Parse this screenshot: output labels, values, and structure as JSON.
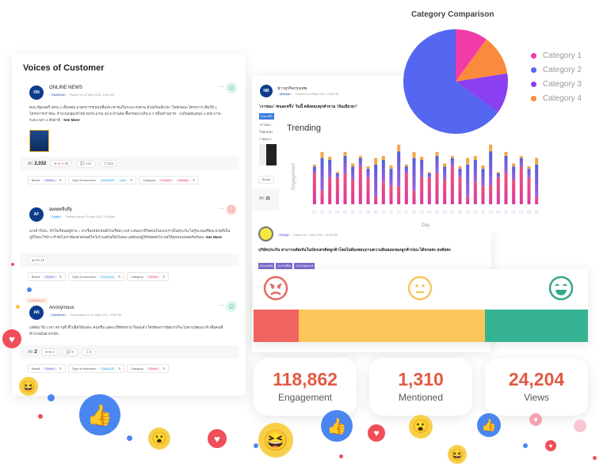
{
  "voc": {
    "title": "Voices of Customer",
    "posts": [
      {
        "avatar": "ON",
        "name": "ONLINE NEWS",
        "source": "Facebook",
        "meta": "Posted on 31 May 2021, 6:00 AM",
        "text": "คณะรัฐมนตรี (ครม.) เห็นชอบ มาตรการช่วยเหลือประชาชนในระยะเร่งด่วน ด้วยเงินเยียวยา ในลักษณะโครงการ เติมให้ 1 โครงการเราชนะ จำนวนกลุ่มเป้าหมายประมาณ 32.9 ล้านคน ซื้อกรอบวงเงิน 6.7 หมื่นล้านบาท - วงเงินสนับสนุน 1,000 บาท - ระยะเวลา 2 สัปดาห์ -",
        "see_more": "See More",
        "all_label": "All:",
        "all": "2,032",
        "reactions": "1.2k",
        "comments": "121",
        "shares": "633",
        "tags": {
          "brand_label": "Brand:",
          "brand": [
            "Others"
          ],
          "type_label": "Type of insurance:",
          "type": [
            "Covid-19",
            "Life"
          ],
          "cat_label": "Category:",
          "cat": [
            "Product",
            "Activity"
          ]
        }
      },
      {
        "avatar": "AF",
        "name": "awwwfluffy",
        "source": "Twitter",
        "meta": "Tweeted since 23 May 2021, 6:38 pm",
        "text": "แกเข้าใจป่ะ: ทำใจเรียนอยู่บ้าน = หาเรื่องหนักหนทั่งไปเรื่อยๆ เพราะมันเอาชีวิตคนในพวกเราเป็นประกัน ไม่รู้จะจนหรือจะป่วยที่เป็นภูมิใจอะไรบ้าง ทำยังไงเราต้องสวดมนต์ไหว้เจ้าแต่มันก็ยังไม่พอ แต่ต้องอยู่ให้รอดต่อไป ขอให้ทุกคนปลอดภัยกันนะ",
        "see_more": "See More",
        "retweets": "82.1k",
        "tags": {
          "brand_label": "Brand:",
          "brand": [
            "Others"
          ],
          "type_label": "Type of insurance:",
          "type": [
            "Covid-19"
          ],
          "cat_label": "Category:",
          "cat": [
            "Others"
          ]
        }
      },
      {
        "badge": "COMMENT",
        "avatar": "AN",
        "name": "Anonymous",
        "source": "Facebook",
        "meta": "Commented on 31 May 2021, 3:54 PM",
        "text": "แต่ต้อง รีบ เวลา สถานที่ ที่ไปฉีดให้แต่ละ คนหรือ แต่ละบริษัททราบ ก็พอแล้ว ใครต้องการฉีดเขาก็จะไปตามนัดเอง ทำเพื่อคนที่ทำงานมันยากกนัก..",
        "all_label": "All:",
        "all": "2",
        "reactions": "2",
        "comments": "0",
        "shares": "0",
        "tags": {
          "brand_label": "Brand:",
          "brand": [
            "Others"
          ],
          "type_label": "Type of insurance:",
          "type": [
            "Covid-19"
          ],
          "cat_label": "Category:",
          "cat": [
            "Others"
          ]
        }
      }
    ]
  },
  "right": {
    "post1": {
      "avatar": "NB",
      "name": "ข่าวธุรกิจกรุงเทพ",
      "source": "Website",
      "meta": "Posted on 6 May 2021, 6:36 PM",
      "title": "'เราชนะ'-'คนละครึ่ง' วันนี้ คลังตอบทุกคำถาม 'เงินเยียวยา'",
      "tag": "คนละครึ่ง",
      "snip": [
        "'เราชนะ'-'",
        "ไขทุกคลัง",
        "7 พฤษภา"
      ],
      "brand_label": "Brand",
      "all_label": "All:",
      "all": "21"
    },
    "post2": {
      "source": "Pantip",
      "meta": "Posted on 7 May 2021, 12:00 AM",
      "title": "บริษัทประกัน สามารถตัดเงินในบัตรเครดิตลูกค้าโดยไม่ต้องสอบถามความยินยอมของลูกค้าก่อน ได้หรอค่ะ สงสัยค่ะ",
      "tags": [
        "บัตรเครดิต",
        "ประกันชีวิต",
        "ประกันสุขภาพ"
      ]
    }
  },
  "sentiment": {
    "negative": 13.5,
    "neutral": 55.7,
    "positive": 30.8,
    "colors": {
      "negative": "#ef6461",
      "neutral": "#fcc65d",
      "positive": "#36b393"
    }
  },
  "stats": [
    {
      "value": "118,862",
      "label": "Engagement"
    },
    {
      "value": "1,310",
      "label": "Mentioned"
    },
    {
      "value": "24,204",
      "label": "Views"
    }
  ],
  "chart_data": [
    {
      "type": "bar",
      "title": "Trending",
      "xlabel": "Day",
      "ylabel": "Engagement",
      "stacked": true,
      "categories": [
        "01",
        "02",
        "03",
        "04",
        "05",
        "06",
        "07",
        "08",
        "09",
        "10",
        "11",
        "12",
        "01",
        "02",
        "03",
        "04",
        "05",
        "06",
        "07",
        "08",
        "09",
        "10",
        "11",
        "12",
        "04",
        "05",
        "06",
        "07",
        "08",
        "09"
      ],
      "series": [
        {
          "name": "pink",
          "color": "#e8437f",
          "values": [
            115,
            50,
            98,
            98,
            115,
            90,
            140,
            98,
            27,
            83,
            67,
            67,
            115,
            50,
            98,
            98,
            115,
            90,
            140,
            98,
            27,
            83,
            67,
            67,
            98,
            115,
            90,
            140,
            98,
            27
          ]
        },
        {
          "name": "blue",
          "color": "#5664d6",
          "values": [
            25,
            122,
            67,
            17,
            65,
            50,
            32,
            34,
            121,
            82,
            65,
            130,
            25,
            122,
            67,
            17,
            65,
            50,
            32,
            34,
            121,
            82,
            65,
            130,
            17,
            65,
            50,
            32,
            34,
            121
          ]
        },
        {
          "name": "orange",
          "color": "#f4a64a",
          "values": [
            8,
            23,
            12,
            5,
            15,
            12,
            8,
            10,
            25,
            15,
            13,
            25,
            8,
            23,
            12,
            5,
            15,
            12,
            8,
            10,
            25,
            15,
            13,
            25,
            5,
            15,
            12,
            8,
            10,
            25
          ]
        }
      ],
      "ylim": [
        0,
        230
      ]
    },
    {
      "type": "pie",
      "title": "Category Comparison",
      "legend": "right",
      "labels": [
        "Category 1",
        "Category 2",
        "Category 3",
        "Category 4"
      ],
      "values": [
        10,
        65,
        12.5,
        12.5
      ],
      "colors": [
        "#f03ba9",
        "#5566f0",
        "#8a3ff0",
        "#fa8a3c"
      ]
    }
  ]
}
